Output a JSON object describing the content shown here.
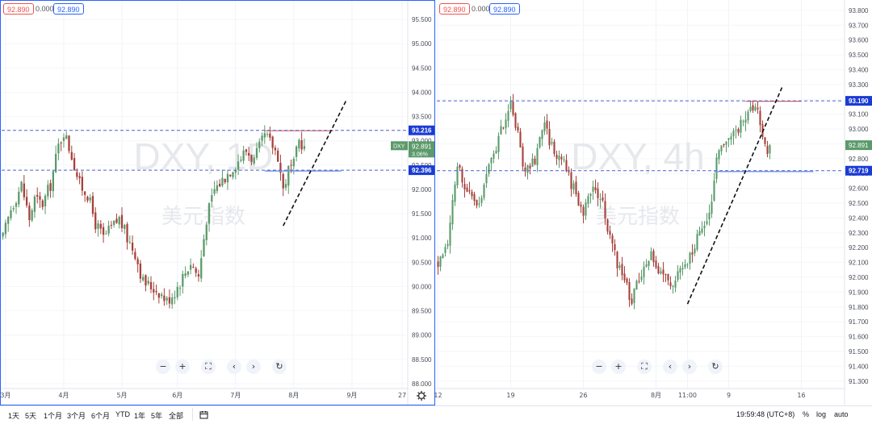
{
  "toolbar": {
    "timeframes": [
      "1天",
      "5天",
      "1个月",
      "3个月",
      "6个月",
      "YTD",
      "1年",
      "5年",
      "全部"
    ],
    "compare_icon": "calendar-range-icon",
    "clock": "19:59:48 (UTC+8)",
    "percent_label": "%",
    "log_label": "log",
    "auto_label": "auto"
  },
  "nav_icons": [
    "zoom-out-icon",
    "zoom-in-icon",
    "reset-scale-icon",
    "scroll-left-icon",
    "scroll-right-icon",
    "reset-chart-icon"
  ],
  "colors": {
    "up": "#5b9a6a",
    "down": "#a7403a",
    "watermark": "#e6e8ec",
    "dash_blue": "#4a5fd0",
    "dash_red": "#e06060",
    "trend": "#111111"
  },
  "charts": [
    {
      "id": "daily",
      "legend": {
        "open": "92.890",
        "change": "0.000",
        "close": "92.890"
      },
      "watermark": {
        "symbol": "DXY, 1D",
        "name": "美元指数"
      },
      "chart_data": {
        "type": "candlestick",
        "symbol": "DXY",
        "interval": "1D",
        "y_ticks": [
          "88.000",
          "88.500",
          "89.000",
          "89.500",
          "90.000",
          "90.500",
          "91.000",
          "91.500",
          "92.000",
          "92.500",
          "93.000",
          "93.500",
          "94.000",
          "94.500",
          "95.000",
          "95.500"
        ],
        "ylim": [
          87.9,
          95.9
        ],
        "x_ticks": [
          {
            "label": "3月",
            "i": 1
          },
          {
            "label": "4月",
            "i": 23
          },
          {
            "label": "5月",
            "i": 45
          },
          {
            "label": "6月",
            "i": 66
          },
          {
            "label": "7月",
            "i": 88
          },
          {
            "label": "8月",
            "i": 110
          },
          {
            "label": "9月",
            "i": 132
          },
          {
            "label": "27",
            "i": 151
          }
        ],
        "n_slots": 153,
        "keypoints": [
          [
            0,
            91.0
          ],
          [
            3,
            91.6
          ],
          [
            7,
            92.1
          ],
          [
            10,
            91.4
          ],
          [
            12,
            91.8
          ],
          [
            15,
            91.7
          ],
          [
            18,
            92.1
          ],
          [
            21,
            92.9
          ],
          [
            23,
            93.2
          ],
          [
            26,
            92.7
          ],
          [
            29,
            92.1
          ],
          [
            32,
            91.9
          ],
          [
            35,
            91.3
          ],
          [
            38,
            91.0
          ],
          [
            41,
            91.2
          ],
          [
            44,
            91.4
          ],
          [
            47,
            91.0
          ],
          [
            50,
            90.7
          ],
          [
            53,
            90.1
          ],
          [
            56,
            90.0
          ],
          [
            59,
            89.9
          ],
          [
            62,
            89.7
          ],
          [
            65,
            89.9
          ],
          [
            68,
            90.2
          ],
          [
            71,
            90.5
          ],
          [
            74,
            90.2
          ],
          [
            77,
            91.4
          ],
          [
            80,
            92.0
          ],
          [
            83,
            92.2
          ],
          [
            86,
            92.4
          ],
          [
            89,
            92.6
          ],
          [
            92,
            92.8
          ],
          [
            95,
            92.6
          ],
          [
            99,
            93.1
          ],
          [
            102,
            92.9
          ],
          [
            104,
            92.7
          ],
          [
            106,
            92.0
          ],
          [
            108,
            92.4
          ],
          [
            110,
            92.5
          ],
          [
            112,
            93.0
          ],
          [
            114,
            92.9
          ]
        ],
        "last_index": 114,
        "last_close": 92.891,
        "hlines": [
          {
            "price": 93.216,
            "label": "93.216",
            "color": "#4a5fd0"
          },
          {
            "price": 92.396,
            "label": "92.396",
            "color": "#4a5fd0"
          }
        ],
        "current": {
          "ticker": "DXY",
          "price": "92.891",
          "change": "3.06%"
        },
        "resistance": {
          "from": 99,
          "to": 125,
          "price": 93.216
        },
        "support": {
          "from": 99,
          "to": 128,
          "price": 92.396
        },
        "trendline": {
          "from": [
            106,
            91.25
          ],
          "to": [
            130,
            93.85
          ]
        }
      }
    },
    {
      "id": "four_hour",
      "legend": {
        "open": "92.890",
        "change": "0.000",
        "close": "92.890"
      },
      "watermark": {
        "symbol": "DXY, 4h",
        "name": "美元指数"
      },
      "chart_data": {
        "type": "candlestick",
        "symbol": "DXY",
        "interval": "4h",
        "y_ticks": [
          "91.300",
          "91.400",
          "91.500",
          "91.600",
          "91.700",
          "91.800",
          "91.900",
          "92.000",
          "92.100",
          "92.200",
          "92.300",
          "92.400",
          "92.500",
          "92.600",
          "92.700",
          "92.800",
          "92.900",
          "93.000",
          "93.100",
          "93.200",
          "93.300",
          "93.400",
          "93.500",
          "93.600",
          "93.700",
          "93.800"
        ],
        "ylim": [
          91.25,
          93.87
        ],
        "x_ticks": [
          {
            "label": "12",
            "i": 0
          },
          {
            "label": "19",
            "i": 30
          },
          {
            "label": "26",
            "i": 60
          },
          {
            "label": "8月",
            "i": 90
          },
          {
            "label": "11:00",
            "i": 103
          },
          {
            "label": "9",
            "i": 120
          },
          {
            "label": "16",
            "i": 150
          }
        ],
        "n_slots": 168,
        "keypoints": [
          [
            0,
            92.1
          ],
          [
            4,
            92.25
          ],
          [
            8,
            92.75
          ],
          [
            12,
            92.6
          ],
          [
            16,
            92.45
          ],
          [
            20,
            92.7
          ],
          [
            24,
            92.85
          ],
          [
            27,
            93.05
          ],
          [
            30,
            93.15
          ],
          [
            33,
            92.95
          ],
          [
            36,
            92.7
          ],
          [
            40,
            92.8
          ],
          [
            44,
            93.0
          ],
          [
            48,
            92.85
          ],
          [
            52,
            92.75
          ],
          [
            56,
            92.6
          ],
          [
            60,
            92.45
          ],
          [
            64,
            92.6
          ],
          [
            68,
            92.5
          ],
          [
            72,
            92.2
          ],
          [
            76,
            92.0
          ],
          [
            80,
            91.85
          ],
          [
            84,
            92.05
          ],
          [
            88,
            92.15
          ],
          [
            92,
            92.0
          ],
          [
            96,
            91.95
          ],
          [
            100,
            92.05
          ],
          [
            104,
            92.15
          ],
          [
            108,
            92.3
          ],
          [
            112,
            92.4
          ],
          [
            116,
            92.9
          ],
          [
            120,
            92.95
          ],
          [
            124,
            93.0
          ],
          [
            128,
            93.1
          ],
          [
            132,
            93.15
          ],
          [
            134,
            92.95
          ],
          [
            136,
            92.85
          ],
          [
            137,
            92.89
          ]
        ],
        "last_index": 137,
        "last_close": 92.891,
        "hlines": [
          {
            "price": 93.19,
            "label": "93.190",
            "color": "#4a5fd0"
          },
          {
            "price": 92.719,
            "label": "92.719",
            "color": "#4a5fd0"
          }
        ],
        "current": {
          "ticker": "",
          "price": "92.891",
          "change": ""
        },
        "resistance": {
          "from": 127,
          "to": 150,
          "price": 93.19
        },
        "support": {
          "from": 114,
          "to": 155,
          "price": 92.719
        },
        "trendline": {
          "from": [
            103,
            91.82
          ],
          "to": [
            142,
            93.28
          ]
        }
      }
    }
  ]
}
